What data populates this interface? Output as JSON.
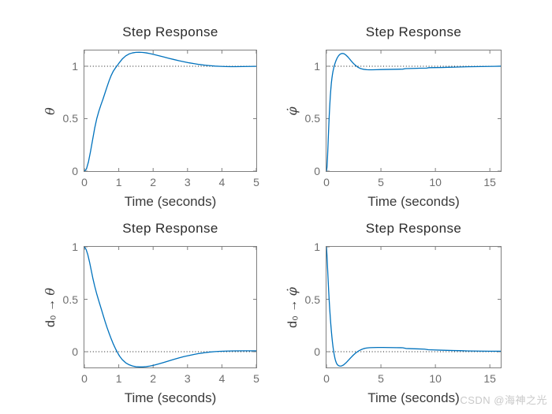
{
  "figure": {
    "watermark": "CSDN @海神之光"
  },
  "colors": {
    "background": "#ffffff",
    "line": "#0072bd",
    "axis": "#7f7f7f",
    "tick_label": "#6e6e6e",
    "label": "#3a3a3a",
    "title": "#2b2b2b",
    "dotted": "#1a1a1a",
    "watermark": "#c9c9c9"
  },
  "chart_data": [
    {
      "type": "line",
      "title": "Step Response",
      "xlabel": "Time (seconds)",
      "ylabel_prefix": "",
      "ylabel_symbol": "θ",
      "xlim": [
        0,
        5
      ],
      "ylim": [
        0,
        1.15
      ],
      "xticks": [
        0,
        1,
        2,
        3,
        4,
        5
      ],
      "xtick_labels": [
        "0",
        "1",
        "2",
        "3",
        "4",
        "5"
      ],
      "yticks": [
        0,
        0.5,
        1
      ],
      "ytick_labels": [
        "0",
        "0.5",
        "1"
      ],
      "grid": false,
      "legend": "none",
      "ref_line_y": 1,
      "series": [
        {
          "name": "step response",
          "points": [
            [
              0,
              0
            ],
            [
              0.06,
              0.02
            ],
            [
              0.12,
              0.09
            ],
            [
              0.18,
              0.19
            ],
            [
              0.24,
              0.3
            ],
            [
              0.3,
              0.41
            ],
            [
              0.36,
              0.5
            ],
            [
              0.42,
              0.57
            ],
            [
              0.48,
              0.63
            ],
            [
              0.54,
              0.685
            ],
            [
              0.6,
              0.745
            ],
            [
              0.66,
              0.805
            ],
            [
              0.72,
              0.862
            ],
            [
              0.78,
              0.912
            ],
            [
              0.84,
              0.952
            ],
            [
              0.9,
              0.982
            ],
            [
              0.96,
              1.008
            ],
            [
              1.02,
              1.035
            ],
            [
              1.1,
              1.068
            ],
            [
              1.2,
              1.098
            ],
            [
              1.3,
              1.117
            ],
            [
              1.4,
              1.127
            ],
            [
              1.5,
              1.132
            ],
            [
              1.6,
              1.133
            ],
            [
              1.7,
              1.131
            ],
            [
              1.8,
              1.127
            ],
            [
              1.9,
              1.121
            ],
            [
              2.0,
              1.113
            ],
            [
              2.15,
              1.101
            ],
            [
              2.3,
              1.089
            ],
            [
              2.45,
              1.076
            ],
            [
              2.6,
              1.064
            ],
            [
              2.75,
              1.052
            ],
            [
              2.9,
              1.042
            ],
            [
              3.05,
              1.032
            ],
            [
              3.2,
              1.024
            ],
            [
              3.35,
              1.016
            ],
            [
              3.5,
              1.01
            ],
            [
              3.65,
              1.005
            ],
            [
              3.8,
              1.001
            ],
            [
              3.95,
              0.999
            ],
            [
              4.1,
              0.997
            ],
            [
              4.25,
              0.996
            ],
            [
              4.4,
              0.996
            ],
            [
              4.6,
              0.997
            ],
            [
              4.8,
              0.998
            ],
            [
              5.0,
              0.999
            ]
          ]
        }
      ]
    },
    {
      "type": "line",
      "title": "Step Response",
      "xlabel": "Time (seconds)",
      "ylabel_prefix": "",
      "ylabel_symbol": "φ̇",
      "xlim": [
        0,
        16
      ],
      "ylim": [
        0,
        1.15
      ],
      "xticks": [
        0,
        5,
        10,
        15
      ],
      "xtick_labels": [
        "0",
        "5",
        "10",
        "15"
      ],
      "yticks": [
        0,
        0.5,
        1
      ],
      "ytick_labels": [
        "0",
        "0.5",
        "1"
      ],
      "grid": false,
      "legend": "none",
      "ref_line_y": 1,
      "series": [
        {
          "name": "step response",
          "points": [
            [
              0,
              0
            ],
            [
              0.05,
              0.04
            ],
            [
              0.1,
              0.14
            ],
            [
              0.15,
              0.27
            ],
            [
              0.2,
              0.4
            ],
            [
              0.25,
              0.52
            ],
            [
              0.3,
              0.62
            ],
            [
              0.35,
              0.71
            ],
            [
              0.4,
              0.78
            ],
            [
              0.45,
              0.84
            ],
            [
              0.5,
              0.885
            ],
            [
              0.55,
              0.922
            ],
            [
              0.6,
              0.952
            ],
            [
              0.7,
              0.998
            ],
            [
              0.8,
              1.032
            ],
            [
              0.9,
              1.06
            ],
            [
              1.0,
              1.082
            ],
            [
              1.1,
              1.098
            ],
            [
              1.2,
              1.11
            ],
            [
              1.3,
              1.117
            ],
            [
              1.4,
              1.121
            ],
            [
              1.5,
              1.122
            ],
            [
              1.6,
              1.119
            ],
            [
              1.7,
              1.113
            ],
            [
              1.8,
              1.105
            ],
            [
              1.95,
              1.09
            ],
            [
              2.1,
              1.072
            ],
            [
              2.25,
              1.053
            ],
            [
              2.4,
              1.035
            ],
            [
              2.55,
              1.019
            ],
            [
              2.7,
              1.005
            ],
            [
              2.85,
              0.993
            ],
            [
              3.0,
              0.984
            ],
            [
              3.15,
              0.977
            ],
            [
              3.3,
              0.973
            ],
            [
              3.5,
              0.969
            ],
            [
              3.7,
              0.967
            ],
            [
              3.9,
              0.966
            ],
            [
              4.2,
              0.966
            ],
            [
              4.6,
              0.967
            ],
            [
              5.0,
              0.968
            ],
            [
              5.5,
              0.969
            ],
            [
              6.0,
              0.97
            ],
            [
              6.5,
              0.971
            ],
            [
              7.0,
              0.972
            ],
            [
              7.25,
              0.977
            ],
            [
              7.6,
              0.978
            ],
            [
              8.0,
              0.979
            ],
            [
              8.6,
              0.981
            ],
            [
              9.2,
              0.982
            ],
            [
              9.4,
              0.986
            ],
            [
              10.0,
              0.987
            ],
            [
              10.6,
              0.988
            ],
            [
              11.2,
              0.99
            ],
            [
              11.8,
              0.991
            ],
            [
              12.4,
              0.993
            ],
            [
              13.0,
              0.995
            ],
            [
              13.6,
              0.996
            ],
            [
              14.2,
              0.997
            ],
            [
              14.8,
              0.998
            ],
            [
              15.4,
              0.999
            ],
            [
              16.0,
              1.0
            ]
          ]
        }
      ]
    },
    {
      "type": "line",
      "title": "Step Response",
      "xlabel": "Time (seconds)",
      "ylabel_prefix": "d₀ → ",
      "ylabel_symbol": "θ",
      "xlim": [
        0,
        5
      ],
      "ylim": [
        -0.15,
        1
      ],
      "xticks": [
        0,
        1,
        2,
        3,
        4,
        5
      ],
      "xtick_labels": [
        "0",
        "1",
        "2",
        "3",
        "4",
        "5"
      ],
      "yticks": [
        0,
        0.5,
        1
      ],
      "ytick_labels": [
        "0",
        "0.5",
        "1"
      ],
      "grid": false,
      "legend": "none",
      "ref_line_y": 0,
      "series": [
        {
          "name": "step response",
          "points": [
            [
              0,
              1.0
            ],
            [
              0.05,
              0.975
            ],
            [
              0.1,
              0.925
            ],
            [
              0.15,
              0.855
            ],
            [
              0.2,
              0.775
            ],
            [
              0.25,
              0.695
            ],
            [
              0.3,
              0.625
            ],
            [
              0.36,
              0.55
            ],
            [
              0.42,
              0.484
            ],
            [
              0.48,
              0.42
            ],
            [
              0.54,
              0.355
            ],
            [
              0.6,
              0.29
            ],
            [
              0.66,
              0.23
            ],
            [
              0.72,
              0.175
            ],
            [
              0.78,
              0.123
            ],
            [
              0.84,
              0.075
            ],
            [
              0.9,
              0.032
            ],
            [
              0.96,
              -0.006
            ],
            [
              1.02,
              -0.04
            ],
            [
              1.1,
              -0.075
            ],
            [
              1.2,
              -0.105
            ],
            [
              1.3,
              -0.124
            ],
            [
              1.4,
              -0.136
            ],
            [
              1.5,
              -0.143
            ],
            [
              1.6,
              -0.145
            ],
            [
              1.7,
              -0.145
            ],
            [
              1.8,
              -0.142
            ],
            [
              1.9,
              -0.137
            ],
            [
              2.0,
              -0.13
            ],
            [
              2.15,
              -0.117
            ],
            [
              2.3,
              -0.103
            ],
            [
              2.45,
              -0.088
            ],
            [
              2.6,
              -0.073
            ],
            [
              2.75,
              -0.059
            ],
            [
              2.9,
              -0.046
            ],
            [
              3.05,
              -0.035
            ],
            [
              3.2,
              -0.025
            ],
            [
              3.35,
              -0.016
            ],
            [
              3.5,
              -0.009
            ],
            [
              3.65,
              -0.003
            ],
            [
              3.8,
              0.001
            ],
            [
              3.95,
              0.004
            ],
            [
              4.1,
              0.006
            ],
            [
              4.3,
              0.008
            ],
            [
              4.6,
              0.009
            ],
            [
              5.0,
              0.009
            ]
          ]
        }
      ]
    },
    {
      "type": "line",
      "title": "Step Response",
      "xlabel": "Time (seconds)",
      "ylabel_prefix": "d₀ → ",
      "ylabel_symbol": "φ̇",
      "xlim": [
        0,
        16
      ],
      "ylim": [
        -0.15,
        1
      ],
      "xticks": [
        0,
        5,
        10,
        15
      ],
      "xtick_labels": [
        "0",
        "5",
        "10",
        "15"
      ],
      "yticks": [
        0,
        0.5,
        1
      ],
      "ytick_labels": [
        "0",
        "0.5",
        "1"
      ],
      "grid": false,
      "legend": "none",
      "ref_line_y": 0,
      "series": [
        {
          "name": "step response",
          "points": [
            [
              0,
              1.0
            ],
            [
              0.05,
              0.91
            ],
            [
              0.1,
              0.8
            ],
            [
              0.15,
              0.69
            ],
            [
              0.2,
              0.585
            ],
            [
              0.25,
              0.49
            ],
            [
              0.3,
              0.405
            ],
            [
              0.35,
              0.328
            ],
            [
              0.4,
              0.258
            ],
            [
              0.45,
              0.196
            ],
            [
              0.5,
              0.14
            ],
            [
              0.55,
              0.09
            ],
            [
              0.6,
              0.047
            ],
            [
              0.65,
              0.01
            ],
            [
              0.7,
              -0.022
            ],
            [
              0.75,
              -0.049
            ],
            [
              0.8,
              -0.072
            ],
            [
              0.85,
              -0.09
            ],
            [
              0.9,
              -0.104
            ],
            [
              0.95,
              -0.115
            ],
            [
              1.0,
              -0.123
            ],
            [
              1.1,
              -0.132
            ],
            [
              1.2,
              -0.136
            ],
            [
              1.3,
              -0.137
            ],
            [
              1.4,
              -0.135
            ],
            [
              1.5,
              -0.13
            ],
            [
              1.6,
              -0.123
            ],
            [
              1.75,
              -0.11
            ],
            [
              1.9,
              -0.094
            ],
            [
              2.05,
              -0.077
            ],
            [
              2.2,
              -0.06
            ],
            [
              2.35,
              -0.044
            ],
            [
              2.5,
              -0.029
            ],
            [
              2.65,
              -0.015
            ],
            [
              2.8,
              -0.003
            ],
            [
              2.95,
              0.007
            ],
            [
              3.1,
              0.016
            ],
            [
              3.25,
              0.023
            ],
            [
              3.4,
              0.029
            ],
            [
              3.6,
              0.034
            ],
            [
              3.8,
              0.037
            ],
            [
              4.0,
              0.039
            ],
            [
              4.3,
              0.04
            ],
            [
              4.7,
              0.041
            ],
            [
              5.2,
              0.041
            ],
            [
              5.8,
              0.04
            ],
            [
              6.4,
              0.039
            ],
            [
              7.0,
              0.038
            ],
            [
              7.3,
              0.031
            ],
            [
              7.8,
              0.029
            ],
            [
              8.4,
              0.027
            ],
            [
              9.0,
              0.025
            ],
            [
              9.35,
              0.019
            ],
            [
              9.9,
              0.017
            ],
            [
              10.5,
              0.015
            ],
            [
              11.1,
              0.013
            ],
            [
              11.7,
              0.011
            ],
            [
              12.3,
              0.01
            ],
            [
              12.9,
              0.008
            ],
            [
              13.5,
              0.007
            ],
            [
              14.2,
              0.006
            ],
            [
              15.0,
              0.005
            ],
            [
              16.0,
              0.005
            ]
          ]
        }
      ]
    }
  ]
}
